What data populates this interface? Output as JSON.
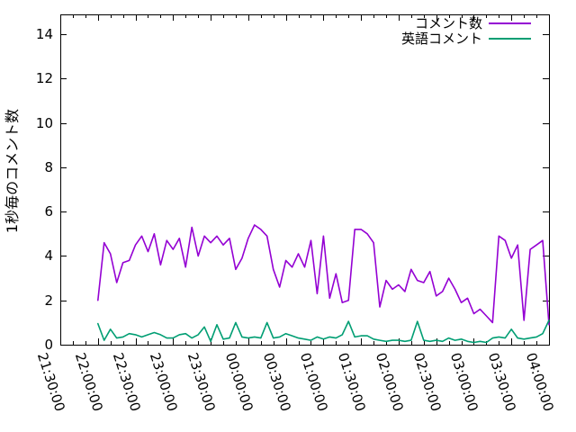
{
  "chart_data": {
    "type": "line",
    "title": "",
    "xlabel": "",
    "ylabel": "1秒毎のコメント数",
    "grid": false,
    "legend_position": "top-right",
    "background_color": "#ffffff",
    "frame_color": "#000000",
    "y_ticks": [
      0,
      2,
      4,
      6,
      8,
      10,
      12,
      14
    ],
    "ylim": [
      0,
      14.9
    ],
    "x_tick_labels": [
      "21:30:00",
      "22:00:00",
      "22:30:00",
      "23:00:00",
      "23:30:00",
      "00:00:00",
      "00:30:00",
      "01:00:00",
      "01:30:00",
      "02:00:00",
      "02:30:00",
      "03:00:00",
      "03:30:00",
      "04:00:00"
    ],
    "xlim_minutes": [
      0,
      390
    ],
    "x_major_every_min": 30,
    "x_minor_every_min": 10,
    "series": [
      {
        "name": "コメント数",
        "color": "#9400d3",
        "x_start": "22:00:00",
        "x_start_min": 30,
        "x_step_min": 5,
        "values": [
          2.0,
          4.6,
          4.1,
          2.8,
          3.7,
          3.8,
          4.5,
          4.9,
          4.2,
          5.0,
          3.6,
          4.7,
          4.3,
          4.8,
          3.5,
          5.3,
          4.0,
          4.9,
          4.6,
          4.9,
          4.5,
          4.8,
          3.4,
          3.9,
          4.8,
          5.4,
          5.2,
          4.9,
          3.4,
          2.6,
          3.8,
          3.5,
          4.1,
          3.5,
          4.7,
          2.3,
          4.9,
          2.1,
          3.2,
          1.9,
          2.0,
          5.2,
          5.2,
          5.0,
          4.6,
          1.7,
          2.9,
          2.5,
          2.7,
          2.4,
          3.4,
          2.9,
          2.8,
          3.3,
          2.2,
          2.4,
          3.0,
          2.5,
          1.9,
          2.1,
          1.4,
          1.6,
          1.3,
          1.0,
          4.9,
          4.7,
          3.9,
          4.5,
          1.1,
          4.3,
          4.5,
          4.7,
          0.9
        ]
      },
      {
        "name": "英語コメント",
        "color": "#009e73",
        "x_start": "22:00:00",
        "x_start_min": 30,
        "x_step_min": 5,
        "values": [
          0.95,
          0.2,
          0.7,
          0.3,
          0.35,
          0.5,
          0.45,
          0.35,
          0.45,
          0.55,
          0.45,
          0.3,
          0.3,
          0.45,
          0.5,
          0.3,
          0.45,
          0.8,
          0.15,
          0.9,
          0.25,
          0.3,
          1.0,
          0.35,
          0.3,
          0.35,
          0.3,
          1.0,
          0.3,
          0.35,
          0.5,
          0.4,
          0.3,
          0.25,
          0.2,
          0.35,
          0.25,
          0.35,
          0.3,
          0.45,
          1.05,
          0.35,
          0.4,
          0.4,
          0.25,
          0.2,
          0.15,
          0.2,
          0.2,
          0.15,
          0.2,
          1.05,
          0.2,
          0.15,
          0.2,
          0.15,
          0.3,
          0.2,
          0.25,
          0.15,
          0.1,
          0.15,
          0.1,
          0.3,
          0.35,
          0.3,
          0.7,
          0.3,
          0.25,
          0.3,
          0.35,
          0.5,
          1.1
        ]
      }
    ]
  }
}
